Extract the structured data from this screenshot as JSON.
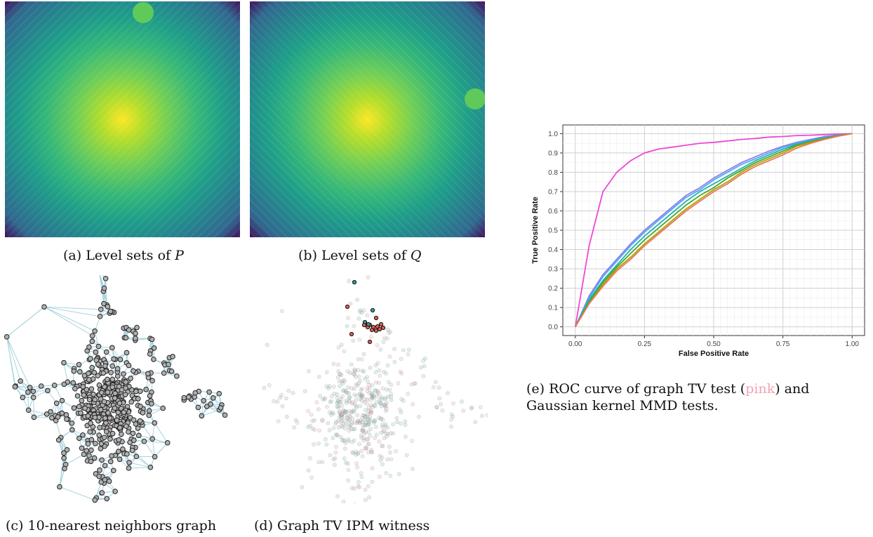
{
  "captions": {
    "a": {
      "prefix": "(a) Level sets of ",
      "var": "P"
    },
    "b": {
      "prefix": "(b) Level sets of ",
      "var": "Q"
    },
    "c": "(c) 10-nearest neighbors graph",
    "d": "(d) Graph TV IPM witness",
    "e": {
      "line1_pre": "(e) ROC curve of graph TV test (",
      "pink_word": "pink",
      "line1_post": ") and",
      "line2": "Gaussian kernel MMD tests."
    }
  },
  "colors": {
    "viridis_center": "#fde725",
    "viridis_mid": "#21918c",
    "viridis_edge": "#440154",
    "blob": "#5fca5a",
    "graph_edge": "#a7d3df",
    "node_fill": "#b0b0b0",
    "witness_teal": "#2aa198",
    "witness_red": "#e05a4e",
    "tv_curve": "#ef47d6"
  },
  "chart_data": {
    "type": "line",
    "xlabel": "False Positive Rate",
    "ylabel": "True Positive Rate",
    "xlim": [
      0,
      1
    ],
    "ylim": [
      0,
      1
    ],
    "x_ticks": [
      "0.00",
      "0.25",
      "0.50",
      "0.75",
      "1.00"
    ],
    "y_ticks": [
      "0.0",
      "0.1",
      "0.2",
      "0.3",
      "0.4",
      "0.5",
      "0.6",
      "0.7",
      "0.8",
      "0.9",
      "1.0"
    ],
    "grid": true,
    "legend": "none",
    "x": [
      0,
      0.05,
      0.1,
      0.15,
      0.2,
      0.25,
      0.3,
      0.35,
      0.4,
      0.45,
      0.5,
      0.55,
      0.6,
      0.65,
      0.7,
      0.75,
      0.8,
      0.85,
      0.9,
      0.95,
      1.0
    ],
    "series": [
      {
        "color": "#ef47d6",
        "values": [
          0,
          0.42,
          0.7,
          0.8,
          0.86,
          0.9,
          0.92,
          0.93,
          0.94,
          0.95,
          0.955,
          0.962,
          0.97,
          0.975,
          0.982,
          0.985,
          0.99,
          0.992,
          0.995,
          0.998,
          1.0
        ]
      },
      {
        "color": "#8f7cf0",
        "values": [
          0,
          0.16,
          0.27,
          0.35,
          0.43,
          0.5,
          0.56,
          0.62,
          0.68,
          0.72,
          0.77,
          0.81,
          0.85,
          0.88,
          0.91,
          0.935,
          0.955,
          0.97,
          0.985,
          0.993,
          1.0
        ]
      },
      {
        "color": "#4aa9f0",
        "values": [
          0,
          0.15,
          0.26,
          0.34,
          0.42,
          0.49,
          0.55,
          0.61,
          0.67,
          0.71,
          0.76,
          0.8,
          0.84,
          0.87,
          0.9,
          0.93,
          0.95,
          0.965,
          0.98,
          0.992,
          1.0
        ]
      },
      {
        "color": "#20b2aa",
        "values": [
          0,
          0.14,
          0.24,
          0.32,
          0.4,
          0.47,
          0.53,
          0.59,
          0.65,
          0.7,
          0.74,
          0.78,
          0.82,
          0.86,
          0.89,
          0.92,
          0.945,
          0.962,
          0.978,
          0.99,
          1.0
        ]
      },
      {
        "color": "#43a832",
        "values": [
          0,
          0.13,
          0.23,
          0.31,
          0.38,
          0.45,
          0.51,
          0.57,
          0.63,
          0.68,
          0.72,
          0.77,
          0.81,
          0.85,
          0.88,
          0.91,
          0.94,
          0.958,
          0.975,
          0.99,
          1.0
        ]
      },
      {
        "color": "#b5a000",
        "values": [
          0,
          0.12,
          0.22,
          0.3,
          0.36,
          0.43,
          0.49,
          0.55,
          0.61,
          0.66,
          0.71,
          0.75,
          0.8,
          0.84,
          0.87,
          0.9,
          0.935,
          0.955,
          0.972,
          0.988,
          1.0
        ]
      },
      {
        "color": "#e8765e",
        "values": [
          0,
          0.12,
          0.21,
          0.29,
          0.35,
          0.42,
          0.48,
          0.54,
          0.6,
          0.65,
          0.7,
          0.74,
          0.79,
          0.83,
          0.86,
          0.89,
          0.925,
          0.95,
          0.97,
          0.987,
          1.0
        ]
      }
    ]
  }
}
